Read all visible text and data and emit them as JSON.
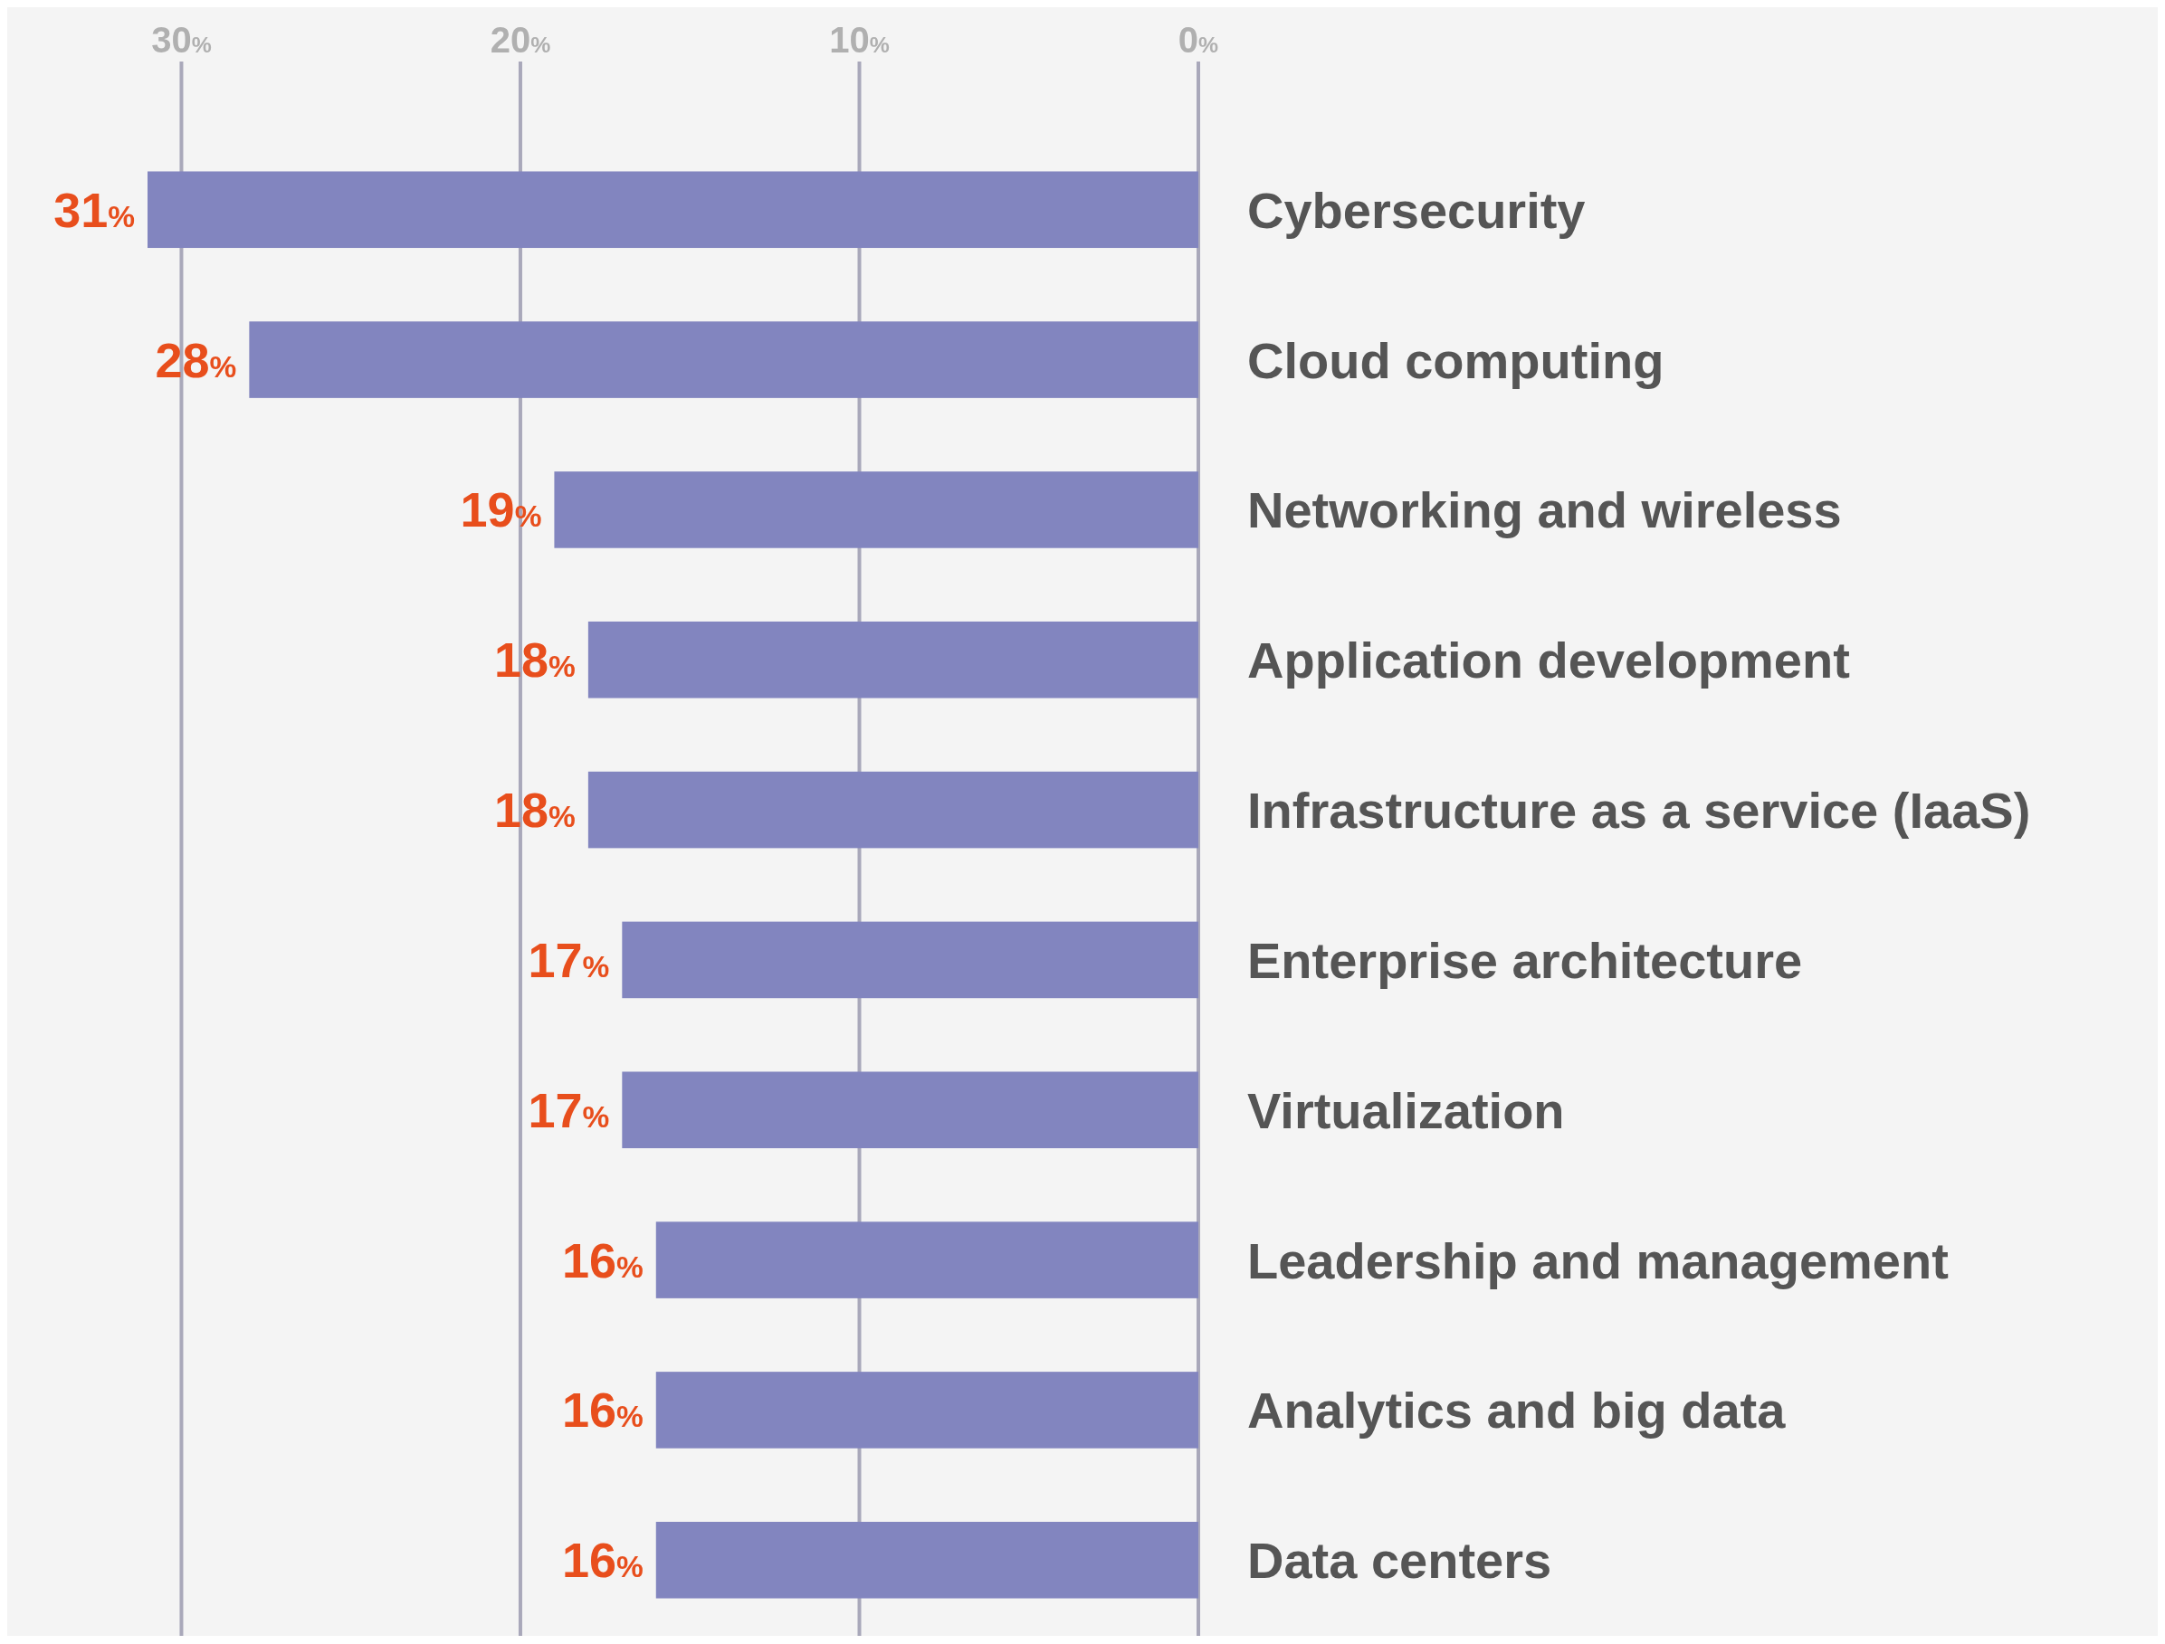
{
  "chart_data": {
    "type": "bar",
    "orientation": "horizontal",
    "categories": [
      "Cybersecurity",
      "Cloud computing",
      "Networking and wireless",
      "Application development",
      "Infrastructure as a service (IaaS)",
      "Enterprise architecture",
      "Virtualization",
      "Leadership and management",
      "Analytics and big data",
      "Data centers"
    ],
    "values": [
      31,
      28,
      19,
      18,
      18,
      17,
      17,
      16,
      16,
      16
    ],
    "value_labels": [
      "31%",
      "28%",
      "19%",
      "18%",
      "18%",
      "17%",
      "17%",
      "16%",
      "16%",
      "16%"
    ],
    "color": "#8285bf",
    "xlim": [
      31,
      0
    ],
    "xticks": [
      {
        "value": 30,
        "label": "30%"
      },
      {
        "value": 20,
        "label": "20%"
      },
      {
        "value": 10,
        "label": "10%"
      },
      {
        "value": 0,
        "label": "0%"
      }
    ],
    "grid": "x"
  }
}
